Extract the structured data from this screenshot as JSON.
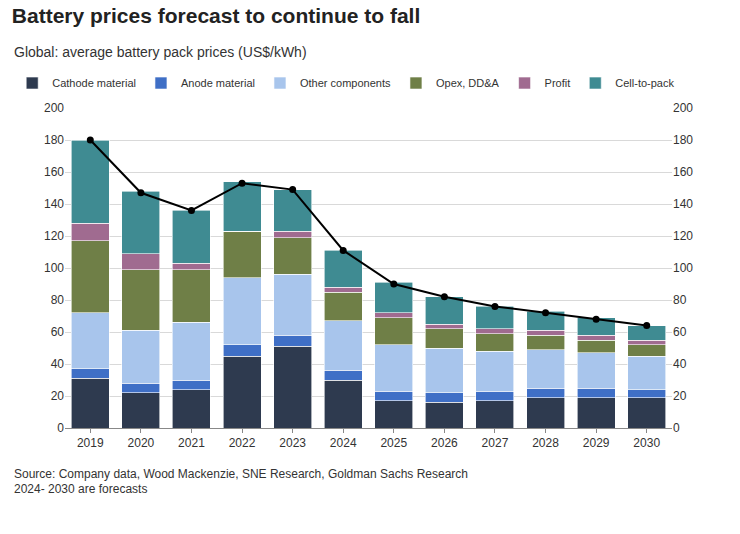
{
  "chart_data": {
    "type": "bar",
    "title": "Battery prices forecast to continue to fall",
    "subtitle": "Global: average battery pack prices (US$/kWh)",
    "annotations": [
      "Source: Company data, Wood Mackenzie, SNE Research, Goldman Sachs Research",
      "2024- 2030 are forecasts"
    ],
    "categories": [
      "2019",
      "2020",
      "2021",
      "2022",
      "2023",
      "2024",
      "2025",
      "2026",
      "2027",
      "2028",
      "2029",
      "2030"
    ],
    "stacked": true,
    "legend": "top",
    "grid": true,
    "ylim": [
      0,
      200
    ],
    "yticks": [
      0,
      20,
      40,
      60,
      80,
      100,
      120,
      140,
      160,
      180,
      200
    ],
    "y2lim": [
      0,
      200
    ],
    "y2ticks": [
      0,
      20,
      40,
      60,
      80,
      100,
      120,
      140,
      160,
      180,
      200
    ],
    "series": [
      {
        "name": "Cathode material",
        "color": "#2e3a4f",
        "values": [
          31,
          22,
          24,
          45,
          51,
          30,
          17,
          16,
          17,
          19,
          19,
          19
        ]
      },
      {
        "name": "Anode material",
        "color": "#3f6fc6",
        "values": [
          6,
          6,
          6,
          7,
          7,
          6,
          6,
          6,
          6,
          6,
          6,
          5
        ]
      },
      {
        "name": "Other components",
        "color": "#a8c5ec",
        "values": [
          35,
          33,
          36,
          42,
          38,
          31,
          29,
          28,
          25,
          24,
          22,
          21
        ]
      },
      {
        "name": "Opex, DD&A",
        "color": "#6f7f47",
        "values": [
          45,
          38,
          33,
          29,
          23,
          18,
          17,
          12,
          11,
          9,
          8,
          7
        ]
      },
      {
        "name": "Profit",
        "color": "#a06b90",
        "values": [
          11,
          10,
          4,
          0,
          4,
          3,
          3,
          3,
          3,
          3,
          3,
          3
        ]
      },
      {
        "name": "Cell-to-pack",
        "color": "#3f8b92",
        "values": [
          52,
          39,
          33,
          31,
          26,
          23,
          19,
          17,
          14,
          12,
          11,
          9
        ]
      },
      {
        "type": "line",
        "axis": "y2",
        "color": "#000000",
        "marker": "circle",
        "values": [
          180,
          147,
          136,
          153,
          149,
          111,
          90,
          82,
          76,
          72,
          68,
          64
        ]
      }
    ]
  }
}
